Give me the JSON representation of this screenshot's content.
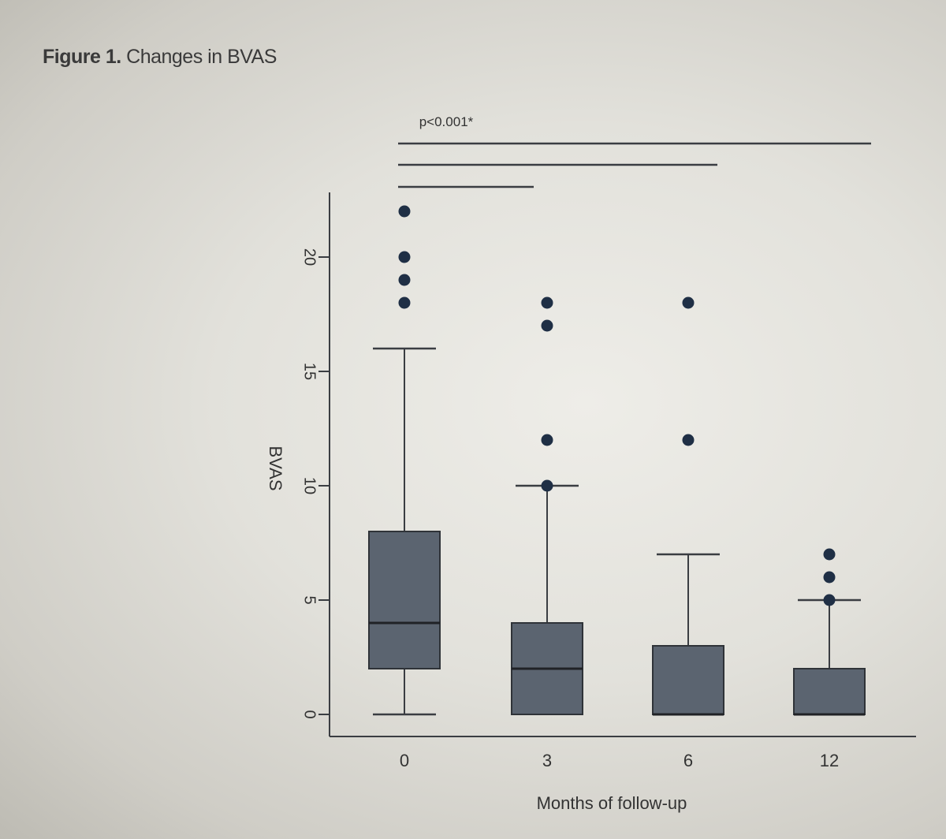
{
  "figure": {
    "label": "Figure 1.",
    "title": "Changes in BVAS"
  },
  "chart_data": {
    "type": "boxplot",
    "title": "Figure 1. Changes in BVAS",
    "xlabel": "Months of follow-up",
    "ylabel": "BVAS",
    "categories": [
      "0",
      "3",
      "6",
      "12"
    ],
    "yticks": [
      0,
      5,
      10,
      15,
      20
    ],
    "ylim": [
      0,
      22
    ],
    "boxes": [
      {
        "category": "0",
        "whisker_low": 0,
        "q1": 2,
        "median": 4,
        "q3": 8,
        "whisker_high": 16,
        "outliers": [
          18,
          19,
          20,
          22
        ]
      },
      {
        "category": "3",
        "whisker_low": 0,
        "q1": 0,
        "median": 2,
        "q3": 4,
        "whisker_high": 10,
        "outliers": [
          10,
          12,
          17,
          18
        ]
      },
      {
        "category": "6",
        "whisker_low": 0,
        "q1": 0,
        "median": 0,
        "q3": 3,
        "whisker_high": 7,
        "outliers": [
          12,
          18
        ]
      },
      {
        "category": "12",
        "whisker_low": 0,
        "q1": 0,
        "median": 0,
        "q3": 2,
        "whisker_high": 5,
        "outliers": [
          5,
          6,
          7
        ]
      }
    ],
    "significance": {
      "label": "p<0.001*",
      "comparisons": [
        [
          "0",
          "3"
        ],
        [
          "0",
          "6"
        ],
        [
          "0",
          "12"
        ]
      ]
    },
    "colors": {
      "box_fill": "#5b6470",
      "box_stroke": "#2f3338",
      "line": "#3a3d42",
      "point": "#1f2f45"
    }
  }
}
